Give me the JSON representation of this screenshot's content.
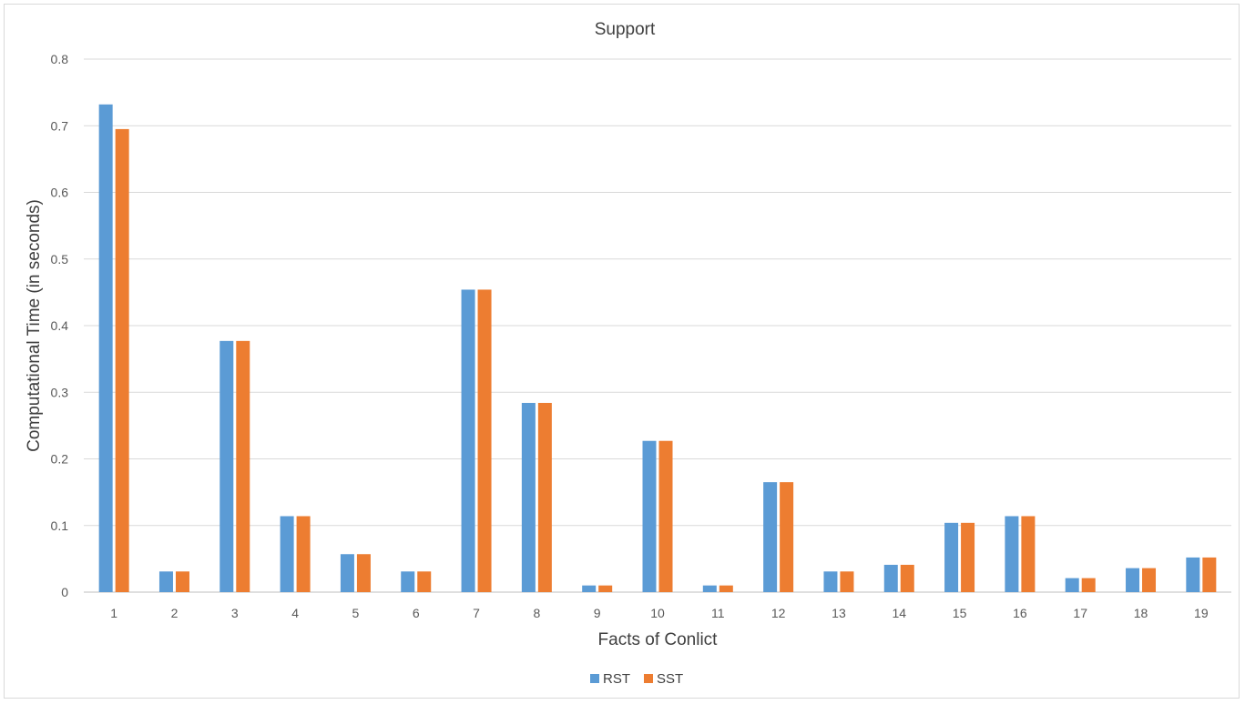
{
  "chart_data": {
    "type": "bar",
    "title": "Support",
    "xlabel": "Facts of Conlict",
    "ylabel": "Computational Time (in seconds)",
    "ylim": [
      0,
      0.8
    ],
    "yticks": [
      "0",
      "0.1",
      "0.2",
      "0.3",
      "0.4",
      "0.5",
      "0.6",
      "0.7",
      "0.8"
    ],
    "categories": [
      "1",
      "2",
      "3",
      "4",
      "5",
      "6",
      "7",
      "8",
      "9",
      "10",
      "11",
      "12",
      "13",
      "14",
      "15",
      "16",
      "17",
      "18",
      "19"
    ],
    "series": [
      {
        "name": "RST",
        "color": "#5b9bd5",
        "values": [
          0.732,
          0.031,
          0.377,
          0.114,
          0.057,
          0.031,
          0.454,
          0.284,
          0.01,
          0.227,
          0.01,
          0.165,
          0.031,
          0.041,
          0.104,
          0.114,
          0.021,
          0.036,
          0.052
        ]
      },
      {
        "name": "SST",
        "color": "#ed7d31",
        "values": [
          0.695,
          0.031,
          0.377,
          0.114,
          0.057,
          0.031,
          0.454,
          0.284,
          0.01,
          0.227,
          0.01,
          0.165,
          0.031,
          0.041,
          0.104,
          0.114,
          0.021,
          0.036,
          0.052
        ]
      }
    ],
    "grid": true,
    "legend_position": "bottom"
  }
}
